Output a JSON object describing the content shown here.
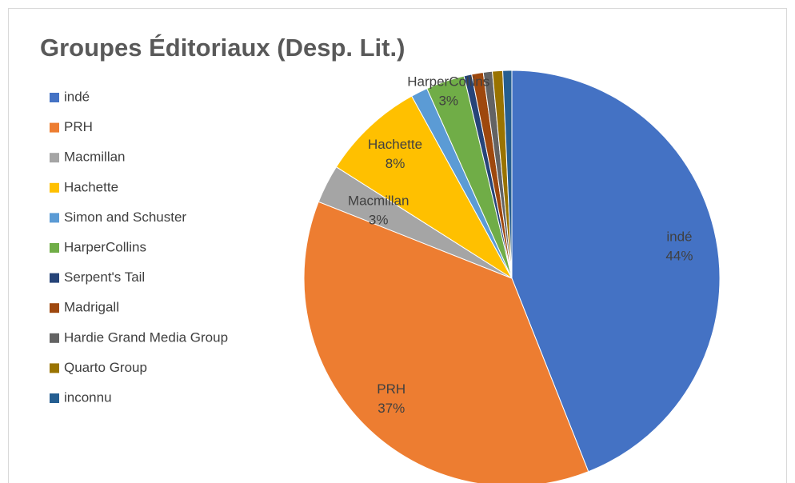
{
  "chart_data": {
    "type": "pie",
    "title": "Groupes Éditoriaux (Desp. Lit.)",
    "categories": [
      "indé",
      "PRH",
      "Macmillan",
      "Hachette",
      "Simon and Schuster",
      "HarperCollins",
      "Serpent's Tail",
      "Madrigall",
      "Hardie Grand Media Group",
      "Quarto Group",
      "inconnu"
    ],
    "values": [
      44,
      37,
      3,
      8,
      1.3,
      3,
      0.6,
      0.9,
      0.7,
      0.8,
      0.7
    ],
    "value_labels": [
      "44%",
      "37%",
      "3%",
      "8%",
      null,
      "3%",
      null,
      null,
      null,
      null,
      null
    ],
    "colors": [
      "#4472c4",
      "#ed7d31",
      "#a5a5a5",
      "#ffc000",
      "#5b9bd5",
      "#70ad47",
      "#264478",
      "#9e480e",
      "#636363",
      "#997300",
      "#255e91"
    ],
    "legend": "left"
  }
}
